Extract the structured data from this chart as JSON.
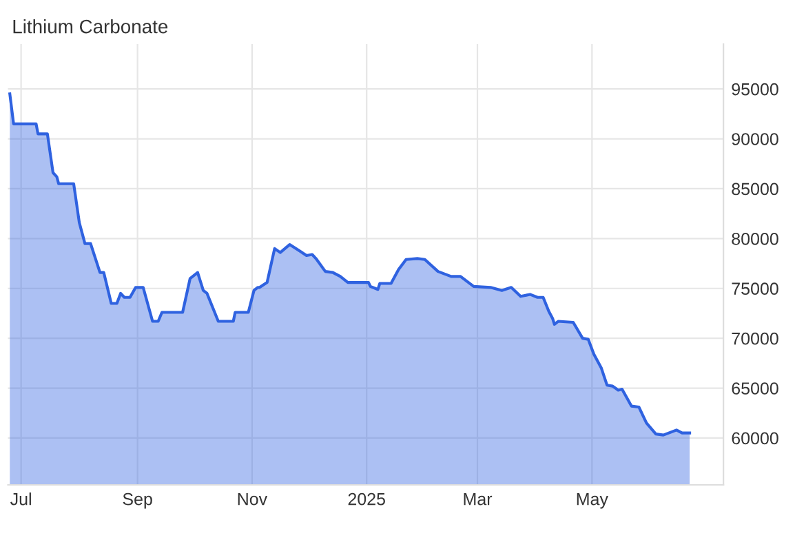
{
  "chart_data": {
    "type": "area",
    "title": "Lithium Carbonate",
    "xlim": [
      "2024-06-24",
      "2025-07-10"
    ],
    "xticks": [
      {
        "value": "2024-07-01",
        "label": "Jul"
      },
      {
        "value": "2024-09-01",
        "label": "Sep"
      },
      {
        "value": "2024-11-01",
        "label": "Nov"
      },
      {
        "value": "2025-01-01",
        "label": "2025"
      },
      {
        "value": "2025-03-01",
        "label": "Mar"
      },
      {
        "value": "2025-05-01",
        "label": "May"
      }
    ],
    "ylim": [
      55300,
      99500
    ],
    "yticks": [
      60000,
      65000,
      70000,
      75000,
      80000,
      85000,
      90000,
      95000
    ],
    "grid": true,
    "legend": false,
    "series": [
      {
        "color": "#2f62e0",
        "x": [
          "2024-06-25",
          "2024-06-27",
          "2024-07-09",
          "2024-07-10",
          "2024-07-15",
          "2024-07-18",
          "2024-07-20",
          "2024-07-21",
          "2024-07-29",
          "2024-08-01",
          "2024-08-04",
          "2024-08-07",
          "2024-08-12",
          "2024-08-14",
          "2024-08-18",
          "2024-08-21",
          "2024-08-23",
          "2024-08-25",
          "2024-08-28",
          "2024-08-31",
          "2024-09-04",
          "2024-09-09",
          "2024-09-12",
          "2024-09-14",
          "2024-09-25",
          "2024-09-29",
          "2024-10-03",
          "2024-10-06",
          "2024-10-08",
          "2024-10-14",
          "2024-10-22",
          "2024-10-23",
          "2024-10-30",
          "2024-11-02",
          "2024-11-04",
          "2024-11-05",
          "2024-11-09",
          "2024-11-13",
          "2024-11-16",
          "2024-11-21",
          "2024-11-26",
          "2024-11-30",
          "2024-12-03",
          "2024-12-05",
          "2024-12-10",
          "2024-12-14",
          "2024-12-18",
          "2024-12-22",
          "2025-01-02",
          "2025-01-03",
          "2025-01-07",
          "2025-01-08",
          "2025-01-14",
          "2025-01-18",
          "2025-01-22",
          "2025-01-28",
          "2025-02-01",
          "2025-02-08",
          "2025-02-15",
          "2025-02-20",
          "2025-02-27",
          "2025-03-08",
          "2025-03-14",
          "2025-03-19",
          "2025-03-24",
          "2025-03-29",
          "2025-04-02",
          "2025-04-05",
          "2025-04-08",
          "2025-04-10",
          "2025-04-11",
          "2025-04-13",
          "2025-04-21",
          "2025-04-26",
          "2025-04-29",
          "2025-05-02",
          "2025-05-06",
          "2025-05-09",
          "2025-05-12",
          "2025-05-15",
          "2025-05-17",
          "2025-05-22",
          "2025-05-26",
          "2025-05-30",
          "2025-06-04",
          "2025-06-08",
          "2025-06-15",
          "2025-06-18",
          "2025-06-22"
        ],
        "values": [
          94500,
          91500,
          91500,
          90500,
          90500,
          86600,
          86200,
          85500,
          85500,
          81600,
          79500,
          79500,
          76600,
          76600,
          73500,
          73500,
          74500,
          74100,
          74100,
          75100,
          75100,
          71700,
          71700,
          72600,
          72600,
          76000,
          76600,
          74800,
          74500,
          71700,
          71700,
          72600,
          72600,
          74800,
          75100,
          75100,
          75600,
          79000,
          78600,
          79400,
          78800,
          78300,
          78400,
          78000,
          76700,
          76600,
          76200,
          75600,
          75600,
          75200,
          74900,
          75500,
          75500,
          76900,
          77900,
          78000,
          77900,
          76700,
          76200,
          76200,
          75200,
          75100,
          74800,
          75100,
          74200,
          74400,
          74100,
          74100,
          72700,
          72000,
          71400,
          71700,
          71600,
          70000,
          69900,
          68400,
          67000,
          65300,
          65200,
          64800,
          64900,
          63200,
          63100,
          61500,
          60400,
          60300,
          60800,
          60500,
          60500
        ]
      }
    ]
  }
}
